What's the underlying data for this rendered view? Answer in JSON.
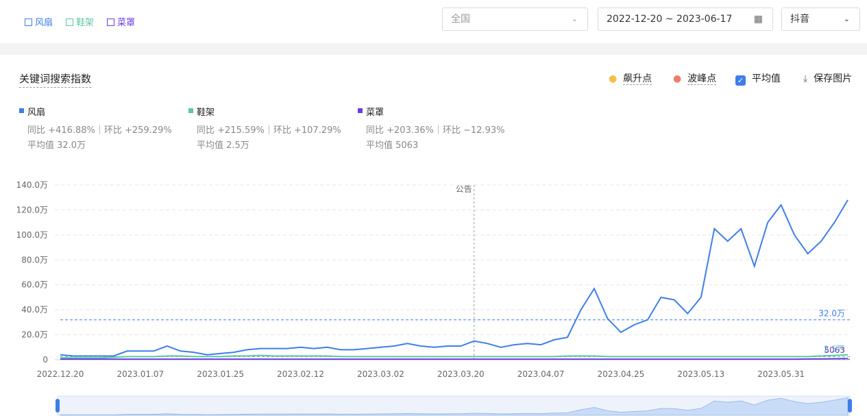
{
  "toolbar": {
    "region": "全国",
    "date_range": "2022-12-20 ~ 2023-06-17",
    "platform": "抖音"
  },
  "card": {
    "title": "关键词搜索指数",
    "tools": [
      "飙升点",
      "波峰点",
      "平均值",
      "保存图片"
    ]
  },
  "chart_data": {
    "type": "line",
    "categories": [
      "2022.12.20",
      null,
      null,
      null,
      null,
      null,
      "2023.01.07",
      null,
      null,
      null,
      null,
      null,
      "2023.01.25",
      null,
      null,
      null,
      null,
      null,
      "2023.02.12",
      null,
      null,
      null,
      null,
      null,
      "2023.03.02",
      null,
      null,
      null,
      null,
      null,
      "2023.03.20",
      null,
      null,
      null,
      null,
      null,
      "2023.04.07",
      null,
      null,
      null,
      null,
      null,
      "2023.04.25",
      null,
      null,
      null,
      null,
      null,
      "2023.05.13",
      null,
      null,
      null,
      null,
      null,
      "2023.05.31",
      null,
      null,
      null,
      null,
      null
    ],
    "ylim": [
      0,
      140
    ],
    "yticks": [
      0,
      {
        "value": 20,
        "label": "20.0万"
      },
      {
        "value": 40,
        "label": "40.0万"
      },
      {
        "value": 60,
        "label": "60.0万"
      },
      {
        "value": 80,
        "label": "80.0万"
      },
      {
        "value": 100,
        "label": "100.0万"
      },
      {
        "value": 120,
        "label": "120.0万"
      },
      {
        "value": 140,
        "label": "140.0万"
      }
    ],
    "grid": true,
    "annotation": {
      "text": "公告",
      "index": 31
    },
    "series": [
      {
        "name": "风扇",
        "color": "#3d7ee8",
        "stats": "同比 +416.88%｜环比 +259.29%",
        "average_text": "平均值 32.0万",
        "average": 32,
        "average_label": "32.0万",
        "values": [
          4,
          3,
          3,
          3,
          3,
          7,
          7,
          7,
          11,
          7,
          6,
          4,
          5,
          6,
          8,
          9,
          9,
          9,
          10,
          9,
          10,
          8,
          8,
          9,
          10,
          11,
          13,
          11,
          10,
          11,
          11,
          15,
          13,
          10,
          12,
          13,
          12,
          16,
          18,
          40,
          57,
          33,
          22,
          28,
          32,
          50,
          48,
          37,
          50,
          105,
          95,
          105,
          75,
          110,
          124,
          100,
          85,
          95,
          110,
          128
        ]
      },
      {
        "name": "鞋架",
        "color": "#5cc6a0",
        "stats": "同比 +215.59%｜环比 +107.29%",
        "average_text": "平均值 2.5万",
        "average": 2.5,
        "average_label": "2.5万",
        "values": [
          1.5,
          1.5,
          1.5,
          1.5,
          2,
          2.5,
          2.5,
          2.5,
          3,
          3,
          2.5,
          2.5,
          2.5,
          3,
          3,
          3.5,
          3,
          3,
          3,
          3,
          3,
          2.5,
          2.5,
          2.5,
          2.5,
          2.5,
          2.5,
          2.5,
          2.5,
          2.5,
          2.5,
          2.5,
          2.5,
          2.5,
          2.5,
          2.5,
          2.5,
          2.5,
          3,
          3,
          3,
          2.5,
          2.5,
          2.5,
          2.5,
          2.5,
          2.5,
          2.5,
          2.5,
          2.5,
          2.5,
          2.5,
          2.5,
          2.5,
          2.5,
          2.5,
          2.5,
          3,
          3.5,
          4
        ]
      },
      {
        "name": "菜罩",
        "color": "#6a3de0",
        "stats": "同比 +203.36%｜环比 −12.93%",
        "average_text": "平均值 5063",
        "average": 0.5063,
        "average_label": "5063",
        "values": [
          0.5,
          0.5,
          0.5,
          0.5,
          0.5,
          0.5,
          0.5,
          0.5,
          0.5,
          0.5,
          0.5,
          0.5,
          0.5,
          0.5,
          0.5,
          0.5,
          0.5,
          0.5,
          0.5,
          0.5,
          0.5,
          0.5,
          0.5,
          0.5,
          0.5,
          0.5,
          0.5,
          0.5,
          0.5,
          0.5,
          0.5,
          0.5,
          0.5,
          0.5,
          0.5,
          0.5,
          0.5,
          0.5,
          0.5,
          0.5,
          0.5,
          0.5,
          0.5,
          0.5,
          0.5,
          0.5,
          0.5,
          0.5,
          0.5,
          0.5,
          0.5,
          0.5,
          0.5,
          0.5,
          0.5,
          0.5,
          0.6,
          0.7,
          0.8,
          1
        ]
      }
    ]
  }
}
